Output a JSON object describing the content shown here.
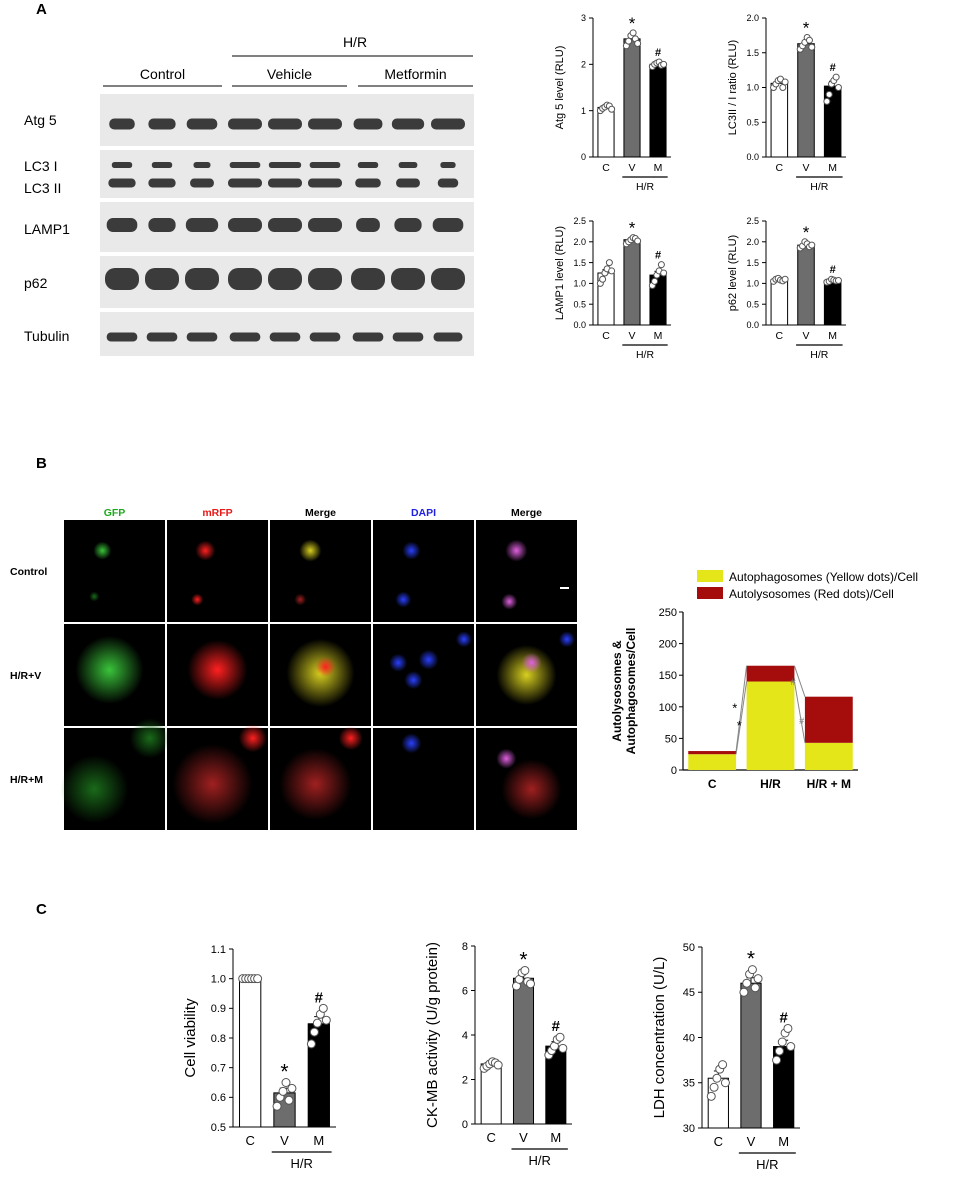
{
  "panel_labels": [
    "A",
    "B",
    "C"
  ],
  "colors": {
    "white": "#ffffff",
    "gray": "#6d6d6d",
    "black": "#000000",
    "yellow": "#e5e61a",
    "darkred": "#a50d0d"
  },
  "blot": {
    "hr_label": "H/R",
    "groups": [
      "Control",
      "Vehicle",
      "Metformin"
    ],
    "rows": [
      "Atg 5",
      "LC3 I",
      "LC3 II",
      "LAMP1",
      "p62",
      "Tubulin"
    ]
  },
  "micro": {
    "columns": [
      "GFP",
      "mRFP",
      "Merge",
      "DAPI",
      "Merge"
    ],
    "column_colors": [
      "#1fa81f",
      "#e81818",
      "#000000",
      "#2020e0",
      "#000000"
    ],
    "rows": [
      "Control",
      "H/R+V",
      "H/R+M"
    ]
  },
  "group_axis": {
    "categories": [
      "C",
      "V",
      "M"
    ],
    "hr_label": "H/R"
  },
  "chart_data": [
    {
      "type": "bar",
      "ylabel": "Atg 5 level (RLU)",
      "categories": [
        "C",
        "V",
        "M"
      ],
      "values": [
        1.07,
        2.55,
        2.0
      ],
      "errors": [
        0.04,
        0.09,
        0.04
      ],
      "points": [
        [
          1.0,
          1.05,
          1.08,
          1.12,
          1.1,
          1.03
        ],
        [
          2.4,
          2.5,
          2.62,
          2.68,
          2.55,
          2.45
        ],
        [
          1.95,
          2.0,
          2.03,
          2.05,
          1.98,
          2.0
        ]
      ],
      "significance": [
        "",
        "*",
        "#"
      ],
      "ylim": [
        0,
        3
      ],
      "yticks": [
        0,
        1,
        2,
        3
      ]
    },
    {
      "type": "bar",
      "ylabel": "LC3II / I ratio (RLU)",
      "categories": [
        "C",
        "V",
        "M"
      ],
      "values": [
        1.06,
        1.63,
        1.02
      ],
      "errors": [
        0.04,
        0.04,
        0.07
      ],
      "points": [
        [
          1.0,
          1.05,
          1.1,
          1.12,
          1.0,
          1.08
        ],
        [
          1.55,
          1.6,
          1.65,
          1.72,
          1.68,
          1.58
        ],
        [
          0.8,
          0.9,
          1.05,
          1.1,
          1.15,
          1.0
        ]
      ],
      "significance": [
        "",
        "*",
        "#"
      ],
      "ylim": [
        0,
        2
      ],
      "yticks": [
        0.0,
        0.5,
        1.0,
        1.5,
        2.0
      ]
    },
    {
      "type": "bar",
      "ylabel": "LAMP1 level (RLU)",
      "categories": [
        "C",
        "V",
        "M"
      ],
      "values": [
        1.25,
        2.05,
        1.2
      ],
      "errors": [
        0.08,
        0.04,
        0.09
      ],
      "points": [
        [
          1.0,
          1.1,
          1.25,
          1.35,
          1.5,
          1.3
        ],
        [
          1.95,
          2.0,
          2.05,
          2.1,
          2.08,
          2.02
        ],
        [
          0.95,
          1.05,
          1.2,
          1.3,
          1.45,
          1.25
        ]
      ],
      "significance": [
        "",
        "*",
        "#"
      ],
      "ylim": [
        0,
        2.5
      ],
      "yticks": [
        0.0,
        0.5,
        1.0,
        1.5,
        2.0,
        2.5
      ]
    },
    {
      "type": "bar",
      "ylabel": "p62 level (RLU)",
      "categories": [
        "C",
        "V",
        "M"
      ],
      "values": [
        1.09,
        1.92,
        1.07
      ],
      "errors": [
        0.03,
        0.04,
        0.02
      ],
      "points": [
        [
          1.05,
          1.1,
          1.12,
          1.08,
          1.06,
          1.1
        ],
        [
          1.85,
          1.9,
          2.0,
          1.95,
          1.88,
          1.92
        ],
        [
          1.03,
          1.05,
          1.1,
          1.08,
          1.06,
          1.07
        ]
      ],
      "significance": [
        "",
        "*",
        "#"
      ],
      "ylim": [
        0,
        2.5
      ],
      "yticks": [
        0.0,
        0.5,
        1.0,
        1.5,
        2.0,
        2.5
      ]
    },
    {
      "type": "bar",
      "stacked": true,
      "ylabel": "Autolysosomes & Autophagosomes/Cell",
      "categories": [
        "C",
        "H/R",
        "H/R + M"
      ],
      "series": [
        {
          "name": "Autophagosomes (Yellow dots)/Cell",
          "values": [
            25,
            140,
            43
          ]
        },
        {
          "name": "Autolysosomes (Red dots)/Cell",
          "values": [
            5,
            25,
            73
          ]
        }
      ],
      "significance_between": [
        {
          "from": "C",
          "to": "H/R",
          "symbol": "*"
        },
        {
          "from": "H/R",
          "to": "H/R + M",
          "symbol": "#"
        }
      ],
      "ylim": [
        0,
        250
      ],
      "yticks": [
        0,
        50,
        100,
        150,
        200,
        250
      ],
      "legend": "top"
    },
    {
      "type": "bar",
      "ylabel": "Cell viability",
      "categories": [
        "C",
        "V",
        "M"
      ],
      "values": [
        1.0,
        0.615,
        0.848
      ],
      "errors": [
        0.003,
        0.016,
        0.024
      ],
      "points": [
        [
          1.0,
          1.0,
          1.0,
          1.0,
          1.0,
          1.0
        ],
        [
          0.57,
          0.6,
          0.62,
          0.65,
          0.59,
          0.63
        ],
        [
          0.78,
          0.82,
          0.85,
          0.88,
          0.9,
          0.86
        ]
      ],
      "significance": [
        "",
        "*",
        "#"
      ],
      "ylim": [
        0.5,
        1.1
      ],
      "yticks": [
        0.5,
        0.6,
        0.7,
        0.8,
        0.9,
        1.0,
        1.1
      ]
    },
    {
      "type": "bar",
      "ylabel": "CK-MB activity (U/g protein)",
      "categories": [
        "C",
        "V",
        "M"
      ],
      "values": [
        2.7,
        6.55,
        3.5
      ],
      "errors": [
        0.08,
        0.22,
        0.2
      ],
      "points": [
        [
          2.5,
          2.6,
          2.7,
          2.8,
          2.75,
          2.65
        ],
        [
          6.2,
          6.5,
          6.8,
          6.9,
          6.4,
          6.3
        ],
        [
          3.1,
          3.3,
          3.5,
          3.8,
          3.9,
          3.4
        ]
      ],
      "significance": [
        "",
        "*",
        "#"
      ],
      "ylim": [
        0,
        8
      ],
      "yticks": [
        0,
        2,
        4,
        6,
        8
      ]
    },
    {
      "type": "bar",
      "ylabel": "LDH concentration (U/L)",
      "categories": [
        "C",
        "V",
        "M"
      ],
      "values": [
        35.5,
        46,
        39
      ],
      "errors": [
        0.8,
        0.6,
        0.7
      ],
      "points": [
        [
          33.5,
          34.5,
          35.5,
          36.5,
          37,
          35
        ],
        [
          45,
          46,
          47,
          47.5,
          45.5,
          46.5
        ],
        [
          37.5,
          38.5,
          39.5,
          40.5,
          41,
          39
        ]
      ],
      "significance": [
        "",
        "*",
        "#"
      ],
      "ylim": [
        30,
        50
      ],
      "yticks": [
        30,
        35,
        40,
        45,
        50
      ]
    }
  ]
}
